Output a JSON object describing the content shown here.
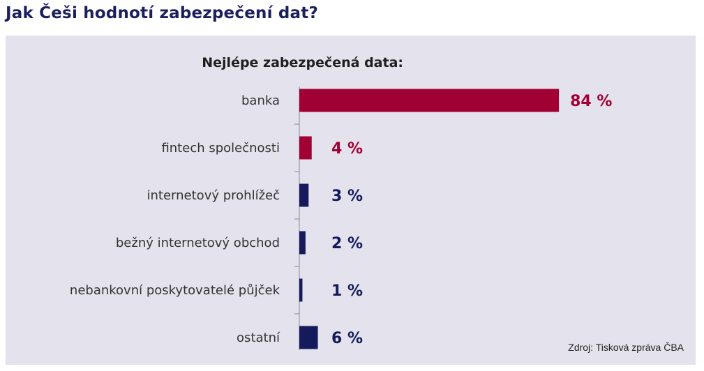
{
  "page": {
    "title": "Jak Češi hodnotí zabezpečení dat?"
  },
  "source": "Zdroj: Tisková zpráva ČBA",
  "colors": {
    "highlight": "#a10034",
    "primary": "#141a5c",
    "panel": "#e3e2ed",
    "axis": "#8a8a99"
  },
  "chart_data": {
    "type": "bar",
    "orientation": "horizontal",
    "title": "Nejlépe zabezpečená data:",
    "categories": [
      "banka",
      "fintech společnosti",
      "internetový prohlížeč",
      "bežný internetový obchod",
      "nebankovní poskytovatelé půjček",
      "ostatní"
    ],
    "values": [
      84,
      4,
      3,
      2,
      1,
      6
    ],
    "value_labels": [
      "84 %",
      "4 %",
      "3 %",
      "2 %",
      "1 %",
      "6 %"
    ],
    "bar_colors": [
      "#a10034",
      "#a10034",
      "#141a5c",
      "#141a5c",
      "#141a5c",
      "#141a5c"
    ],
    "unit": "%",
    "xlim": [
      0,
      100
    ],
    "grid": false,
    "legend": "none"
  }
}
